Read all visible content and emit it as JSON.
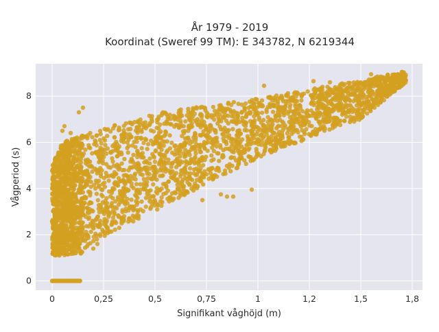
{
  "chart_data": {
    "type": "scatter",
    "title_lines": [
      "År 1979 - 2019",
      "Koordinat (Sweref 99 TM): E 343782, N 6219344"
    ],
    "xlabel": "Signifikant våghöjd (m)",
    "ylabel": "Vågperiod (s)",
    "xlim": [
      -0.08,
      1.8
    ],
    "ylim": [
      -0.4,
      9.4
    ],
    "x_ticks": [
      0,
      0.25,
      0.5,
      0.75,
      1,
      1.25,
      1.5,
      1.75
    ],
    "x_tick_labels": [
      "0",
      "0,25",
      "0,5",
      "0,75",
      "1",
      "1,2",
      "1,5",
      "1,8"
    ],
    "y_ticks": [
      0,
      2,
      4,
      6,
      8
    ],
    "y_tick_labels": [
      "0",
      "2",
      "4",
      "6",
      "8"
    ],
    "grid": true,
    "legend": "none",
    "colors": {
      "marker": "#d4a020",
      "plot_background": "#e5e5f0",
      "grid": "#ffffff"
    },
    "series": [
      {
        "values_description": "dense cloud",
        "zero_period_segment": {
          "x_from": 0.0,
          "x_to": 0.14,
          "y": 0
        },
        "main_cloud_envelope": [
          {
            "x": 0.0,
            "y_low": 1.1,
            "y_high": 5.0
          },
          {
            "x": 0.05,
            "y_low": 1.1,
            "y_high": 6.0
          },
          {
            "x": 0.15,
            "y_low": 1.2,
            "y_high": 6.3
          },
          {
            "x": 0.25,
            "y_low": 1.9,
            "y_high": 6.6
          },
          {
            "x": 0.4,
            "y_low": 2.6,
            "y_high": 7.0
          },
          {
            "x": 0.5,
            "y_low": 3.0,
            "y_high": 7.3
          },
          {
            "x": 0.75,
            "y_low": 4.2,
            "y_high": 7.6
          },
          {
            "x": 1.0,
            "y_low": 5.3,
            "y_high": 7.9
          },
          {
            "x": 1.25,
            "y_low": 6.2,
            "y_high": 8.3
          },
          {
            "x": 1.5,
            "y_low": 7.0,
            "y_high": 8.7
          },
          {
            "x": 1.72,
            "y_low": 8.6,
            "y_high": 9.1
          }
        ],
        "outlier_points": [
          [
            0.15,
            7.5
          ],
          [
            0.13,
            7.3
          ],
          [
            0.06,
            6.7
          ],
          [
            0.05,
            6.5
          ],
          [
            0.09,
            6.4
          ],
          [
            1.7,
            9.05
          ],
          [
            1.68,
            8.95
          ],
          [
            1.55,
            8.95
          ],
          [
            1.62,
            8.7
          ],
          [
            1.57,
            8.65
          ],
          [
            1.03,
            8.45
          ],
          [
            1.51,
            8.0
          ],
          [
            1.47,
            8.1
          ],
          [
            1.35,
            8.6
          ],
          [
            1.27,
            8.65
          ],
          [
            0.85,
            3.65
          ],
          [
            0.88,
            3.65
          ],
          [
            0.73,
            3.5
          ],
          [
            0.97,
            3.95
          ],
          [
            0.82,
            3.75
          ],
          [
            0.6,
            3.8
          ],
          [
            0.42,
            2.7
          ],
          [
            0.35,
            2.8
          ],
          [
            0.27,
            2.3
          ],
          [
            0.22,
            1.6
          ],
          [
            0.17,
            1.5
          ],
          [
            0.2,
            1.4
          ],
          [
            0.64,
            4.1
          ],
          [
            0.91,
            5.6
          ],
          [
            1.12,
            6.2
          ],
          [
            1.2,
            6.9
          ],
          [
            1.33,
            7.4
          ],
          [
            1.41,
            7.2
          ],
          [
            1.48,
            7.6
          ],
          [
            1.28,
            7.1
          ]
        ]
      }
    ]
  }
}
